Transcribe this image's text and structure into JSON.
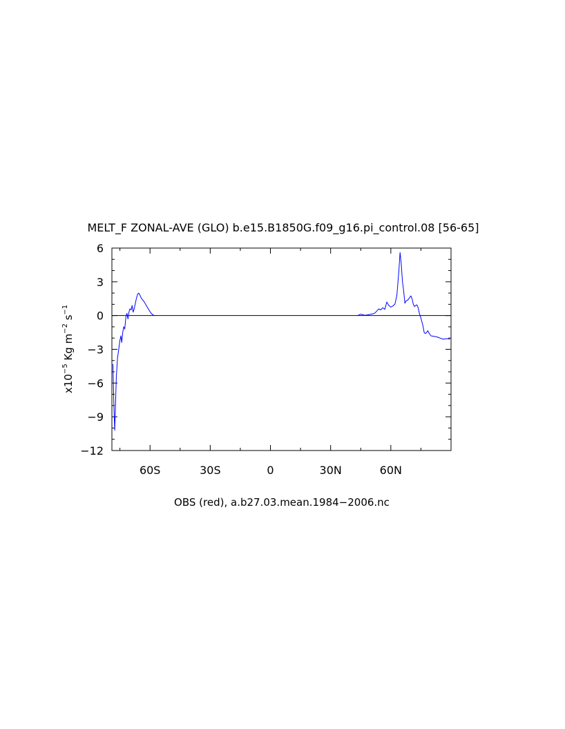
{
  "chart_data": {
    "type": "line",
    "title": "MELT_F ZONAL-AVE (GLO) b.e15.B1850G.f09_g16.pi_control.08 [56-65]",
    "ylabel_parts": {
      "prefix": "x10",
      "exp": "−5",
      "unit_a": " Kg m",
      "exp_a": "−2",
      "unit_b": " s",
      "exp_b": "−1"
    },
    "xlabel": "OBS (red), a.b27.03.mean.1984−2006.nc",
    "xlim": [
      -79,
      90
    ],
    "ylim": [
      -12,
      6
    ],
    "xticks": [
      {
        "value": -60,
        "label": "60S"
      },
      {
        "value": -30,
        "label": "30S"
      },
      {
        "value": 0,
        "label": "0"
      },
      {
        "value": 30,
        "label": "30N"
      },
      {
        "value": 60,
        "label": "60N"
      }
    ],
    "yticks": [
      {
        "value": 6,
        "label": "6"
      },
      {
        "value": 3,
        "label": "3"
      },
      {
        "value": 0,
        "label": "0"
      },
      {
        "value": -3,
        "label": "−3"
      },
      {
        "value": -6,
        "label": "−6"
      },
      {
        "value": -9,
        "label": "−9"
      },
      {
        "value": -12,
        "label": "−12"
      }
    ],
    "zero_line": true,
    "series": [
      {
        "color": "#0000ff",
        "segments": [
          [
            [
              -78.5,
              -4.3
            ],
            [
              -78.0,
              -8.0
            ],
            [
              -77.6,
              -10.2
            ],
            [
              -77.2,
              -8.0
            ],
            [
              -76.8,
              -5.5
            ],
            [
              -76.2,
              -3.8
            ],
            [
              -75.6,
              -3.0
            ],
            [
              -75.0,
              -2.2
            ],
            [
              -74.5,
              -1.8
            ],
            [
              -74.1,
              -2.4
            ],
            [
              -73.6,
              -1.5
            ],
            [
              -73.1,
              -1.0
            ],
            [
              -72.6,
              -1.2
            ],
            [
              -72.0,
              -0.1
            ],
            [
              -71.5,
              0.2
            ],
            [
              -71.0,
              -0.3
            ],
            [
              -70.5,
              0.3
            ],
            [
              -70.0,
              0.6
            ],
            [
              -69.4,
              0.5
            ],
            [
              -68.9,
              0.9
            ],
            [
              -68.4,
              0.3
            ],
            [
              -67.9,
              0.6
            ],
            [
              -67.4,
              1.0
            ],
            [
              -66.8,
              1.5
            ],
            [
              -66.2,
              1.9
            ],
            [
              -65.6,
              2.0
            ],
            [
              -65.0,
              1.8
            ],
            [
              -64.2,
              1.5
            ],
            [
              -63.2,
              1.3
            ],
            [
              -62.2,
              1.0
            ],
            [
              -61.2,
              0.7
            ],
            [
              -60.2,
              0.4
            ],
            [
              -59.2,
              0.15
            ],
            [
              -58.2,
              0.03
            ],
            [
              -57.0,
              0.0
            ]
          ],
          [
            [
              43.0,
              0.0
            ],
            [
              44.0,
              0.04
            ],
            [
              45.0,
              0.12
            ],
            [
              46.0,
              0.08
            ],
            [
              47.0,
              0.02
            ],
            [
              48.0,
              0.05
            ],
            [
              49.0,
              0.08
            ],
            [
              50.0,
              0.12
            ],
            [
              51.0,
              0.15
            ],
            [
              52.0,
              0.22
            ],
            [
              53.0,
              0.4
            ],
            [
              54.0,
              0.6
            ],
            [
              55.0,
              0.5
            ],
            [
              56.0,
              0.7
            ],
            [
              57.0,
              0.55
            ],
            [
              58.0,
              1.2
            ],
            [
              59.0,
              0.9
            ],
            [
              60.0,
              0.75
            ],
            [
              61.0,
              0.85
            ],
            [
              62.0,
              1.0
            ],
            [
              63.0,
              1.8
            ],
            [
              64.0,
              4.0
            ],
            [
              64.6,
              5.6
            ],
            [
              65.2,
              4.6
            ],
            [
              65.8,
              3.0
            ],
            [
              66.4,
              2.2
            ],
            [
              67.0,
              1.1
            ],
            [
              67.6,
              1.3
            ],
            [
              68.2,
              1.35
            ],
            [
              68.8,
              1.45
            ],
            [
              69.4,
              1.6
            ],
            [
              70.0,
              1.75
            ],
            [
              70.6,
              1.5
            ],
            [
              71.2,
              1.0
            ],
            [
              71.8,
              0.8
            ],
            [
              72.4,
              0.9
            ],
            [
              73.0,
              0.95
            ],
            [
              73.6,
              0.7
            ],
            [
              74.2,
              0.2
            ],
            [
              74.8,
              -0.1
            ],
            [
              75.4,
              -0.5
            ],
            [
              76.0,
              -0.9
            ],
            [
              76.6,
              -1.5
            ],
            [
              77.2,
              -1.6
            ],
            [
              77.8,
              -1.5
            ],
            [
              78.4,
              -1.35
            ],
            [
              79.0,
              -1.55
            ],
            [
              80.0,
              -1.8
            ],
            [
              81.5,
              -1.85
            ],
            [
              83.0,
              -1.9
            ],
            [
              84.5,
              -2.0
            ],
            [
              86.0,
              -2.1
            ],
            [
              88.0,
              -2.05
            ],
            [
              89.5,
              -2.1
            ]
          ]
        ]
      }
    ]
  }
}
